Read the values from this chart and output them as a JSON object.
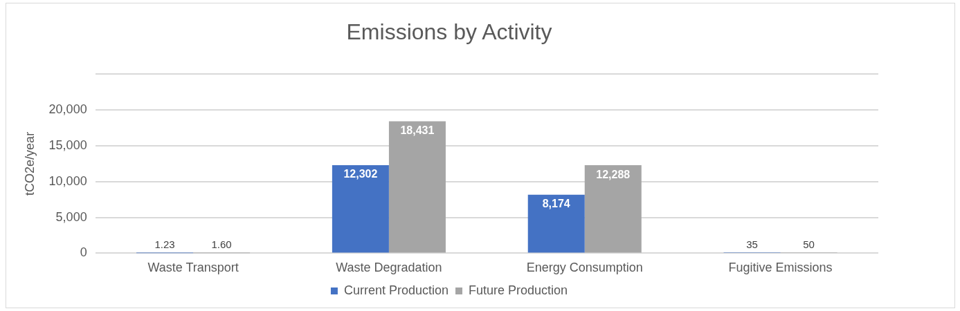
{
  "chart_data": {
    "type": "bar",
    "title": "Emissions by Activity",
    "ylabel": "tCO2e/year",
    "categories": [
      "Waste Transport",
      "Waste Degradation",
      "Energy Consumption",
      "Fugitive Emissions"
    ],
    "series": [
      {
        "name": "Current Production",
        "color": "#4472c4",
        "values": [
          1.23,
          12302,
          8174,
          35
        ],
        "value_labels": [
          "1.23",
          "12,302",
          "8,174",
          "35"
        ]
      },
      {
        "name": "Future Production",
        "color": "#a5a5a5",
        "values": [
          1.6,
          18431,
          12288,
          50
        ],
        "value_labels": [
          "1.60",
          "18,431",
          "12,288",
          "50"
        ]
      }
    ],
    "ylim": [
      0,
      25000
    ],
    "yticks": [
      0,
      {
        "value": 5000,
        "label": "5,000"
      },
      {
        "value": 10000,
        "label": "10,000"
      },
      {
        "value": 15000,
        "label": "15,000"
      },
      {
        "value": 20000,
        "label": "20,000"
      },
      {
        "value": 25000,
        "label": null
      }
    ],
    "grid": "y",
    "legend": "bottom"
  }
}
